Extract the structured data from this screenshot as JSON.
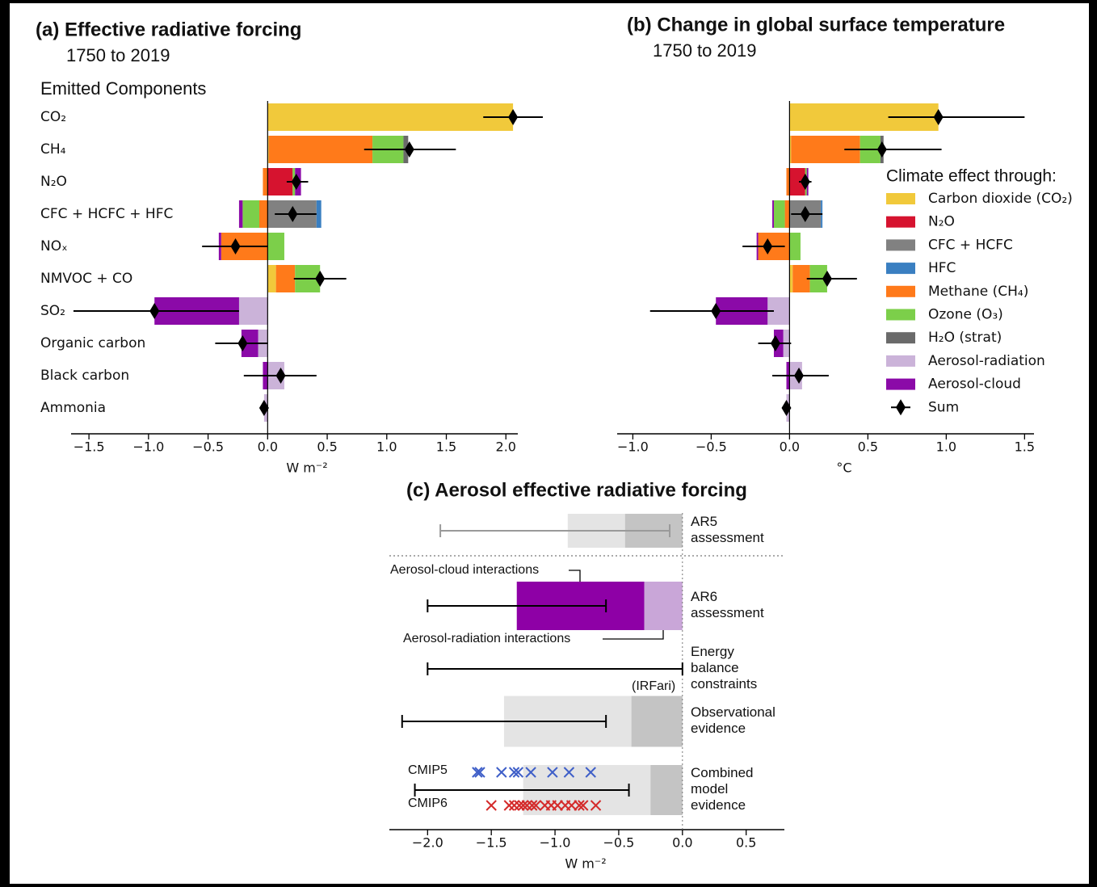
{
  "chart_data": [
    {
      "type": "stacked_bar",
      "title": "(a) Effective radiative forcing",
      "subtitle": "1750 to 2019",
      "ylabel": "Emitted Components",
      "xlabel": "W m⁻²",
      "categories": [
        "CO₂",
        "CH₄",
        "N₂O",
        "CFC + HCFC + HFC",
        "NOₓ",
        "NMVOC + CO",
        "SO₂",
        "Organic carbon",
        "Black carbon",
        "Ammonia"
      ],
      "xlim": [
        -1.65,
        2.1
      ],
      "xticks": [
        {
          "value": -1.5,
          "label": "−1.5"
        },
        {
          "value": -1.0,
          "label": "−1.0"
        },
        {
          "value": -0.5,
          "label": "−0.5"
        },
        {
          "value": 0,
          "label": "0.0"
        },
        0.5,
        {
          "value": 1.0,
          "label": "1.0"
        },
        1.5,
        {
          "value": 2.0,
          "label": "2.0"
        }
      ],
      "series": [
        {
          "color": "#f1c93b",
          "values": [
            2.06,
            0.01,
            0,
            0,
            0,
            0.07,
            0,
            0,
            0,
            0
          ]
        },
        {
          "color": "#d6132f",
          "values": [
            0,
            0,
            0.21,
            0,
            0,
            0,
            0,
            0,
            0,
            0
          ]
        },
        {
          "color": "#818181",
          "values": [
            0,
            0,
            0,
            0.41,
            0,
            0,
            0,
            0,
            0,
            0
          ]
        },
        {
          "color": "#3a7fc1",
          "values": [
            0,
            0,
            0,
            0.04,
            0,
            0,
            0,
            0,
            0,
            0
          ]
        },
        {
          "color": "#ff7a1a",
          "values": [
            0,
            0.87,
            -0.04,
            -0.07,
            -0.39,
            0.16,
            0,
            0,
            0,
            0
          ]
        },
        {
          "color": "#7ccf4a",
          "values": [
            0,
            0.26,
            0.02,
            -0.14,
            0.14,
            0.21,
            0,
            0,
            0,
            0
          ]
        },
        {
          "color": "#6a6a6a",
          "values": [
            0,
            0.04,
            0,
            0,
            0,
            0,
            0,
            0,
            0,
            0
          ]
        },
        {
          "color": "#cbb3d9",
          "values": [
            0,
            0,
            0,
            0,
            0,
            0,
            -0.24,
            -0.08,
            0.14,
            -0.03
          ]
        },
        {
          "color": "#8b0aa8",
          "values": [
            0,
            0,
            0.05,
            -0.03,
            -0.02,
            0,
            -0.71,
            -0.14,
            -0.04,
            0
          ]
        }
      ],
      "sum": {
        "values": [
          2.06,
          1.19,
          0.24,
          0.21,
          -0.27,
          0.44,
          -0.95,
          -0.21,
          0.11,
          -0.03
        ],
        "low": [
          1.81,
          0.81,
          0.16,
          0.06,
          -0.55,
          0.22,
          -1.63,
          -0.44,
          -0.2,
          null
        ],
        "high": [
          2.31,
          1.58,
          0.34,
          0.41,
          0.0,
          0.66,
          -0.24,
          0.0,
          0.41,
          null
        ]
      }
    },
    {
      "type": "stacked_bar",
      "title": "(b) Change in global surface temperature",
      "subtitle": "1750 to 2019",
      "xlabel": "°C",
      "xlim": [
        -1.1,
        1.56
      ],
      "xticks": [
        {
          "value": -1.0,
          "label": "−1.0"
        },
        {
          "value": -0.5,
          "label": "−0.5"
        },
        {
          "value": 0,
          "label": "0.0"
        },
        0.5,
        {
          "value": 1.0,
          "label": "1.0"
        },
        1.5
      ],
      "legend_title": "Climate effect through:",
      "series": [
        {
          "name": "Carbon dioxide (CO₂)",
          "color": "#f1c93b",
          "values": [
            0.95,
            0.01,
            0,
            0,
            0,
            0.02,
            0,
            0,
            0,
            0
          ]
        },
        {
          "name": "N₂O",
          "color": "#d6132f",
          "values": [
            0,
            0,
            0.1,
            0,
            0,
            0,
            0,
            0,
            0,
            0
          ]
        },
        {
          "name": "CFC + HCFC",
          "color": "#818181",
          "values": [
            0,
            0,
            0,
            0.2,
            0,
            0,
            0,
            0,
            0,
            0
          ]
        },
        {
          "name": "HFC",
          "color": "#3a7fc1",
          "values": [
            0,
            0,
            0,
            0.01,
            0,
            0,
            0,
            0,
            0,
            0
          ]
        },
        {
          "name": "Methane (CH₄)",
          "color": "#ff7a1a",
          "values": [
            0,
            0.44,
            -0.02,
            -0.03,
            -0.2,
            0.11,
            0,
            0,
            0,
            0
          ]
        },
        {
          "name": "Ozone (O₃)",
          "color": "#7ccf4a",
          "values": [
            0,
            0.13,
            0.01,
            -0.07,
            0.07,
            0.11,
            0,
            0,
            0,
            0
          ]
        },
        {
          "name": "H₂O (strat)",
          "color": "#6a6a6a",
          "values": [
            0,
            0.02,
            0,
            0,
            0,
            0,
            0,
            0,
            0,
            0
          ]
        },
        {
          "name": "Aerosol-radiation",
          "color": "#cbb3d9",
          "values": [
            0,
            0,
            0,
            0,
            0,
            0,
            -0.14,
            -0.04,
            0.08,
            -0.02
          ]
        },
        {
          "name": "Aerosol-cloud",
          "color": "#8b0aa8",
          "values": [
            0,
            0,
            0.01,
            -0.01,
            -0.01,
            0,
            -0.33,
            -0.06,
            -0.02,
            0
          ]
        }
      ],
      "sum": {
        "name": "Sum",
        "values": [
          0.95,
          0.59,
          0.1,
          0.1,
          -0.14,
          0.24,
          -0.47,
          -0.09,
          0.06,
          -0.02
        ],
        "low": [
          0.63,
          0.35,
          0.06,
          0.01,
          -0.3,
          0.11,
          -0.89,
          -0.2,
          -0.11,
          null
        ],
        "high": [
          1.5,
          0.97,
          0.14,
          0.21,
          -0.03,
          0.43,
          -0.1,
          0.01,
          0.25,
          null
        ]
      }
    },
    {
      "type": "range",
      "title": "(c) Aerosol effective radiative forcing",
      "xlabel": "W m⁻²",
      "categories": [
        "AR5\nassessment",
        "AR6\nassessment",
        "Energy\nbalance\nconstraints",
        "Observational\nevidence",
        "Combined\nmodel\nevidence"
      ],
      "xlim": [
        -2.3,
        0.8
      ],
      "xticks": [
        {
          "value": -2.0,
          "label": "−2.0"
        },
        {
          "value": -1.5,
          "label": "−1.5"
        },
        {
          "value": -1.0,
          "label": "−1.0"
        },
        {
          "value": -0.5,
          "label": "−0.5"
        },
        {
          "value": 0,
          "label": "0.0"
        },
        0.5
      ],
      "very_likely_range": {
        "color": "#e4e4e4",
        "values": [
          -0.9,
          null,
          null,
          -1.4,
          -1.25
        ]
      },
      "likely_range": {
        "color": "#c4c4c4",
        "values": [
          -0.45,
          null,
          null,
          -0.4,
          -0.25
        ]
      },
      "series": [
        {
          "name": "Aerosol-radiation interactions",
          "color": "#c9a6d8",
          "values": [
            null,
            -0.3,
            null,
            null,
            null
          ]
        },
        {
          "name": "Aerosol-cloud interactions",
          "color": "#8e00a6",
          "values": [
            null,
            -1.0,
            null,
            null,
            null
          ]
        }
      ],
      "error_low": [
        -1.9,
        -2.0,
        -2.0,
        -2.2,
        -2.1
      ],
      "error_high": [
        -0.1,
        -0.6,
        0.0,
        -0.6,
        -0.42
      ],
      "error_color": [
        "#9a9a9a",
        "#000000",
        "#000000",
        "#000000",
        "#000000"
      ],
      "annotations": [
        "(IRFari)"
      ],
      "models": [
        {
          "name": "CMIP5",
          "color": "#3f5fc8",
          "values": [
            -1.61,
            -1.59,
            -1.42,
            -1.32,
            -1.29,
            -1.19,
            -1.02,
            -0.89,
            -0.72
          ]
        },
        {
          "name": "CMIP6",
          "color": "#d42a2a",
          "values": [
            -1.5,
            -1.36,
            -1.32,
            -1.28,
            -1.25,
            -1.22,
            -1.18,
            -1.15,
            -1.08,
            -1.03,
            -0.98,
            -0.92,
            -0.87,
            -0.81,
            -0.78,
            -0.68
          ]
        }
      ]
    }
  ]
}
